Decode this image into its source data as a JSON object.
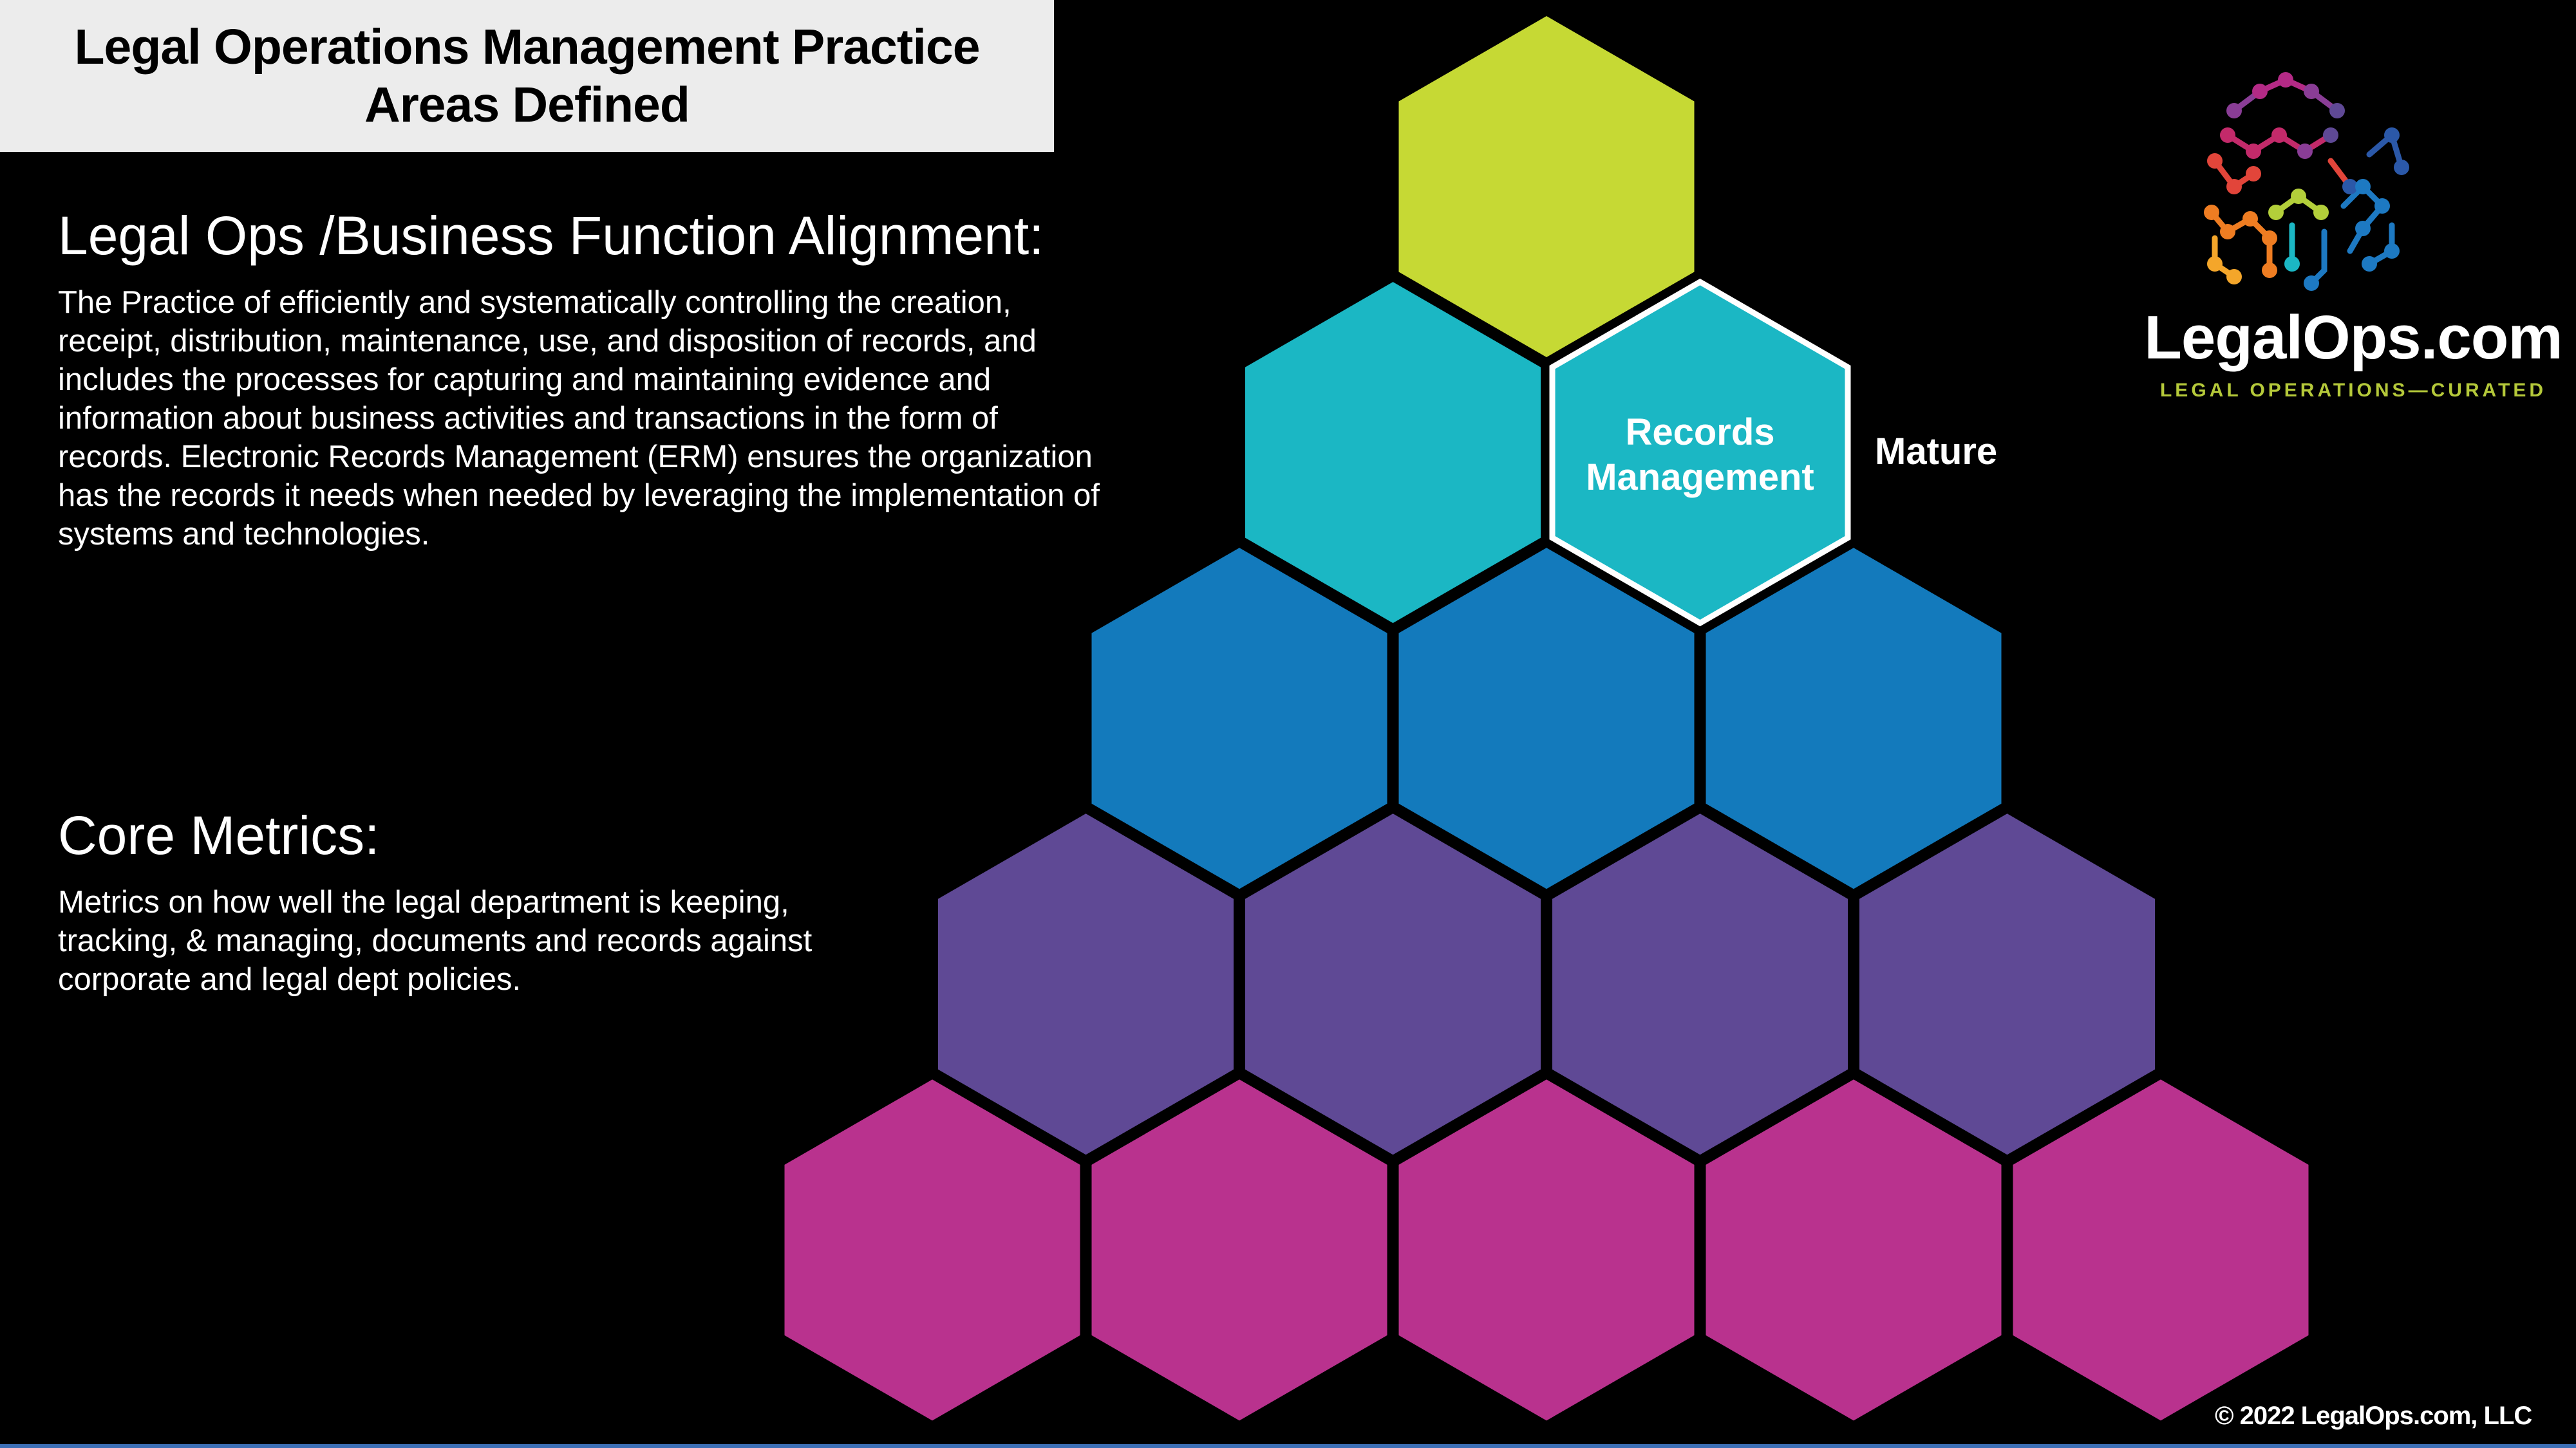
{
  "title": "Legal Operations Management Practice Areas Defined",
  "alignment": {
    "heading": "Legal Ops /Business Function Alignment:",
    "text": "The Practice of efficiently and systematically controlling the creation, receipt, distribution, maintenance, use, and disposition of records, and includes the processes for capturing and maintaining evidence and information about business activities and transactions in the form of records.  Electronic Records Management (ERM) ensures the organization has the records it needs when needed by leveraging the implementation of systems and technologies."
  },
  "metrics": {
    "heading": "Core Metrics:",
    "text": "Metrics on how well the legal department is keeping, tracking, & managing, documents and records against corporate and legal dept policies."
  },
  "pyramid": {
    "rows": [
      {
        "color": "#c6d934",
        "count": 1
      },
      {
        "color": "#1bb7c4",
        "count": 2
      },
      {
        "color": "#137abc",
        "count": 3
      },
      {
        "color": "#5f4995",
        "count": 4
      },
      {
        "color": "#b9328e",
        "count": 5
      }
    ],
    "highlighted": {
      "row": 1,
      "index": 1,
      "label_line1": "Records",
      "label_line2": "Management",
      "outline_color": "#ffffff"
    },
    "level_label": "Mature"
  },
  "logo": {
    "icon": "network-hexagon-icon",
    "name": "LegalOps.com",
    "tagline": "LEGAL OPERATIONS—CURATED"
  },
  "copyright": "© 2022 LegalOps.com, LLC"
}
